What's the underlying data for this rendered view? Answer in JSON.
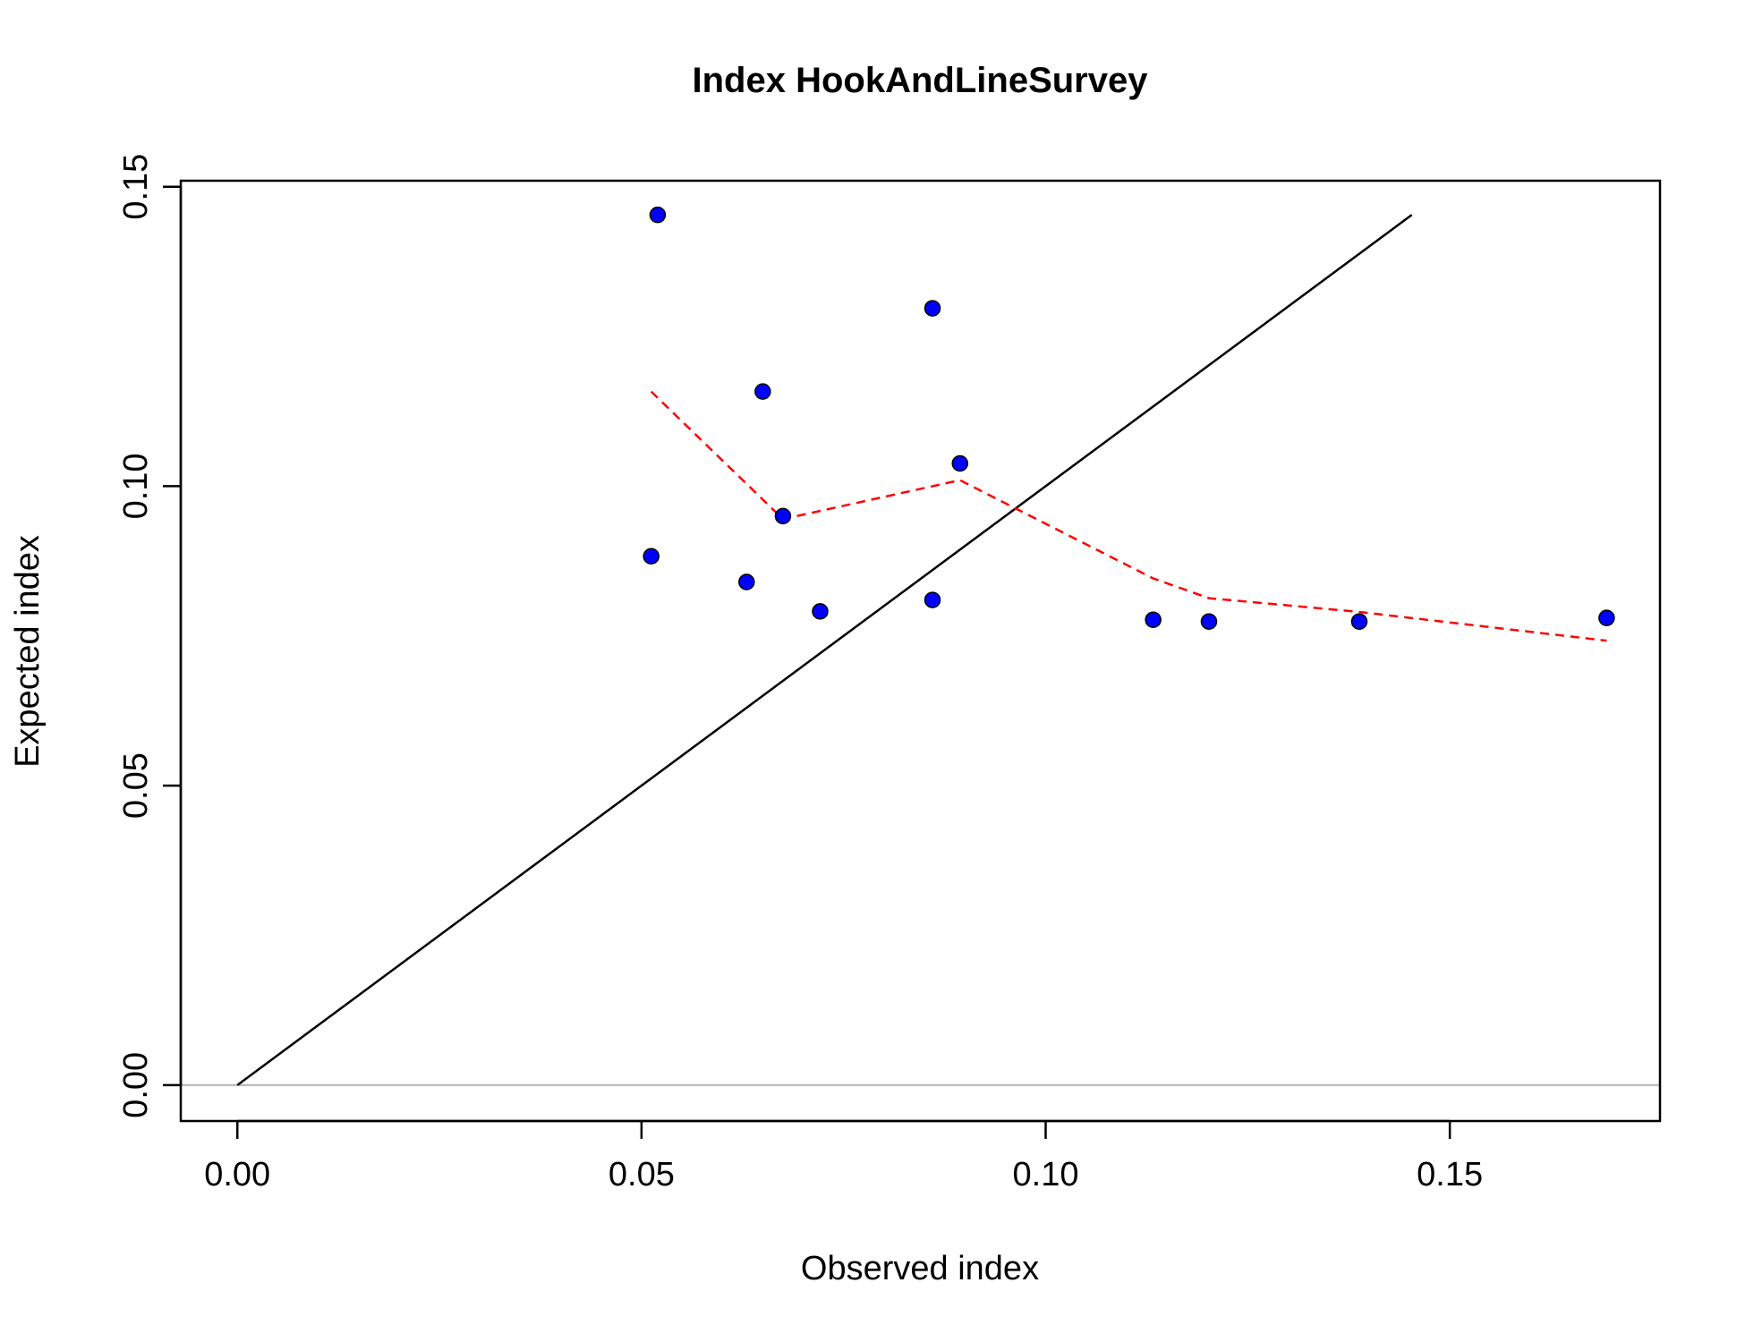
{
  "chart_data": {
    "type": "scatter",
    "title": "Index HookAndLineSurvey",
    "xlabel": "Observed index",
    "ylabel": "Expected index",
    "xlim": [
      -0.007,
      0.176
    ],
    "ylim": [
      -0.006,
      0.151
    ],
    "x_ticks": [
      "0.00",
      "0.05",
      "0.10",
      "0.15"
    ],
    "y_ticks": [
      "0.00",
      "0.05",
      "0.10",
      "0.15"
    ],
    "x_tick_values": [
      0.0,
      0.05,
      0.1,
      0.15
    ],
    "y_tick_values": [
      0.0,
      0.05,
      0.1,
      0.15
    ],
    "grid": false,
    "legend": "none",
    "series": [
      {
        "type": "points",
        "color": "#0000ff",
        "x": [
          0.052,
          0.0512,
          0.065,
          0.063,
          0.0675,
          0.0721,
          0.086,
          0.086,
          0.0894,
          0.1133,
          0.1202,
          0.1388,
          0.1694
        ],
        "y": [
          0.1453,
          0.0883,
          0.1158,
          0.084,
          0.095,
          0.0791,
          0.1297,
          0.081,
          0.1038,
          0.0777,
          0.0774,
          0.0774,
          0.078
        ]
      },
      {
        "type": "line",
        "style": "solid",
        "color": "#000000",
        "x": [
          0.0,
          0.1453
        ],
        "y": [
          0.0,
          0.1453
        ]
      },
      {
        "type": "line",
        "style": "dashed",
        "color": "#ff0000",
        "x": [
          0.0512,
          0.0675,
          0.0894,
          0.1133,
          0.1202,
          0.1388,
          0.1694
        ],
        "y": [
          0.1158,
          0.0945,
          0.101,
          0.0846,
          0.0813,
          0.079,
          0.0742
        ]
      },
      {
        "type": "hline",
        "color": "#bebebe",
        "y": 0.0
      }
    ]
  }
}
